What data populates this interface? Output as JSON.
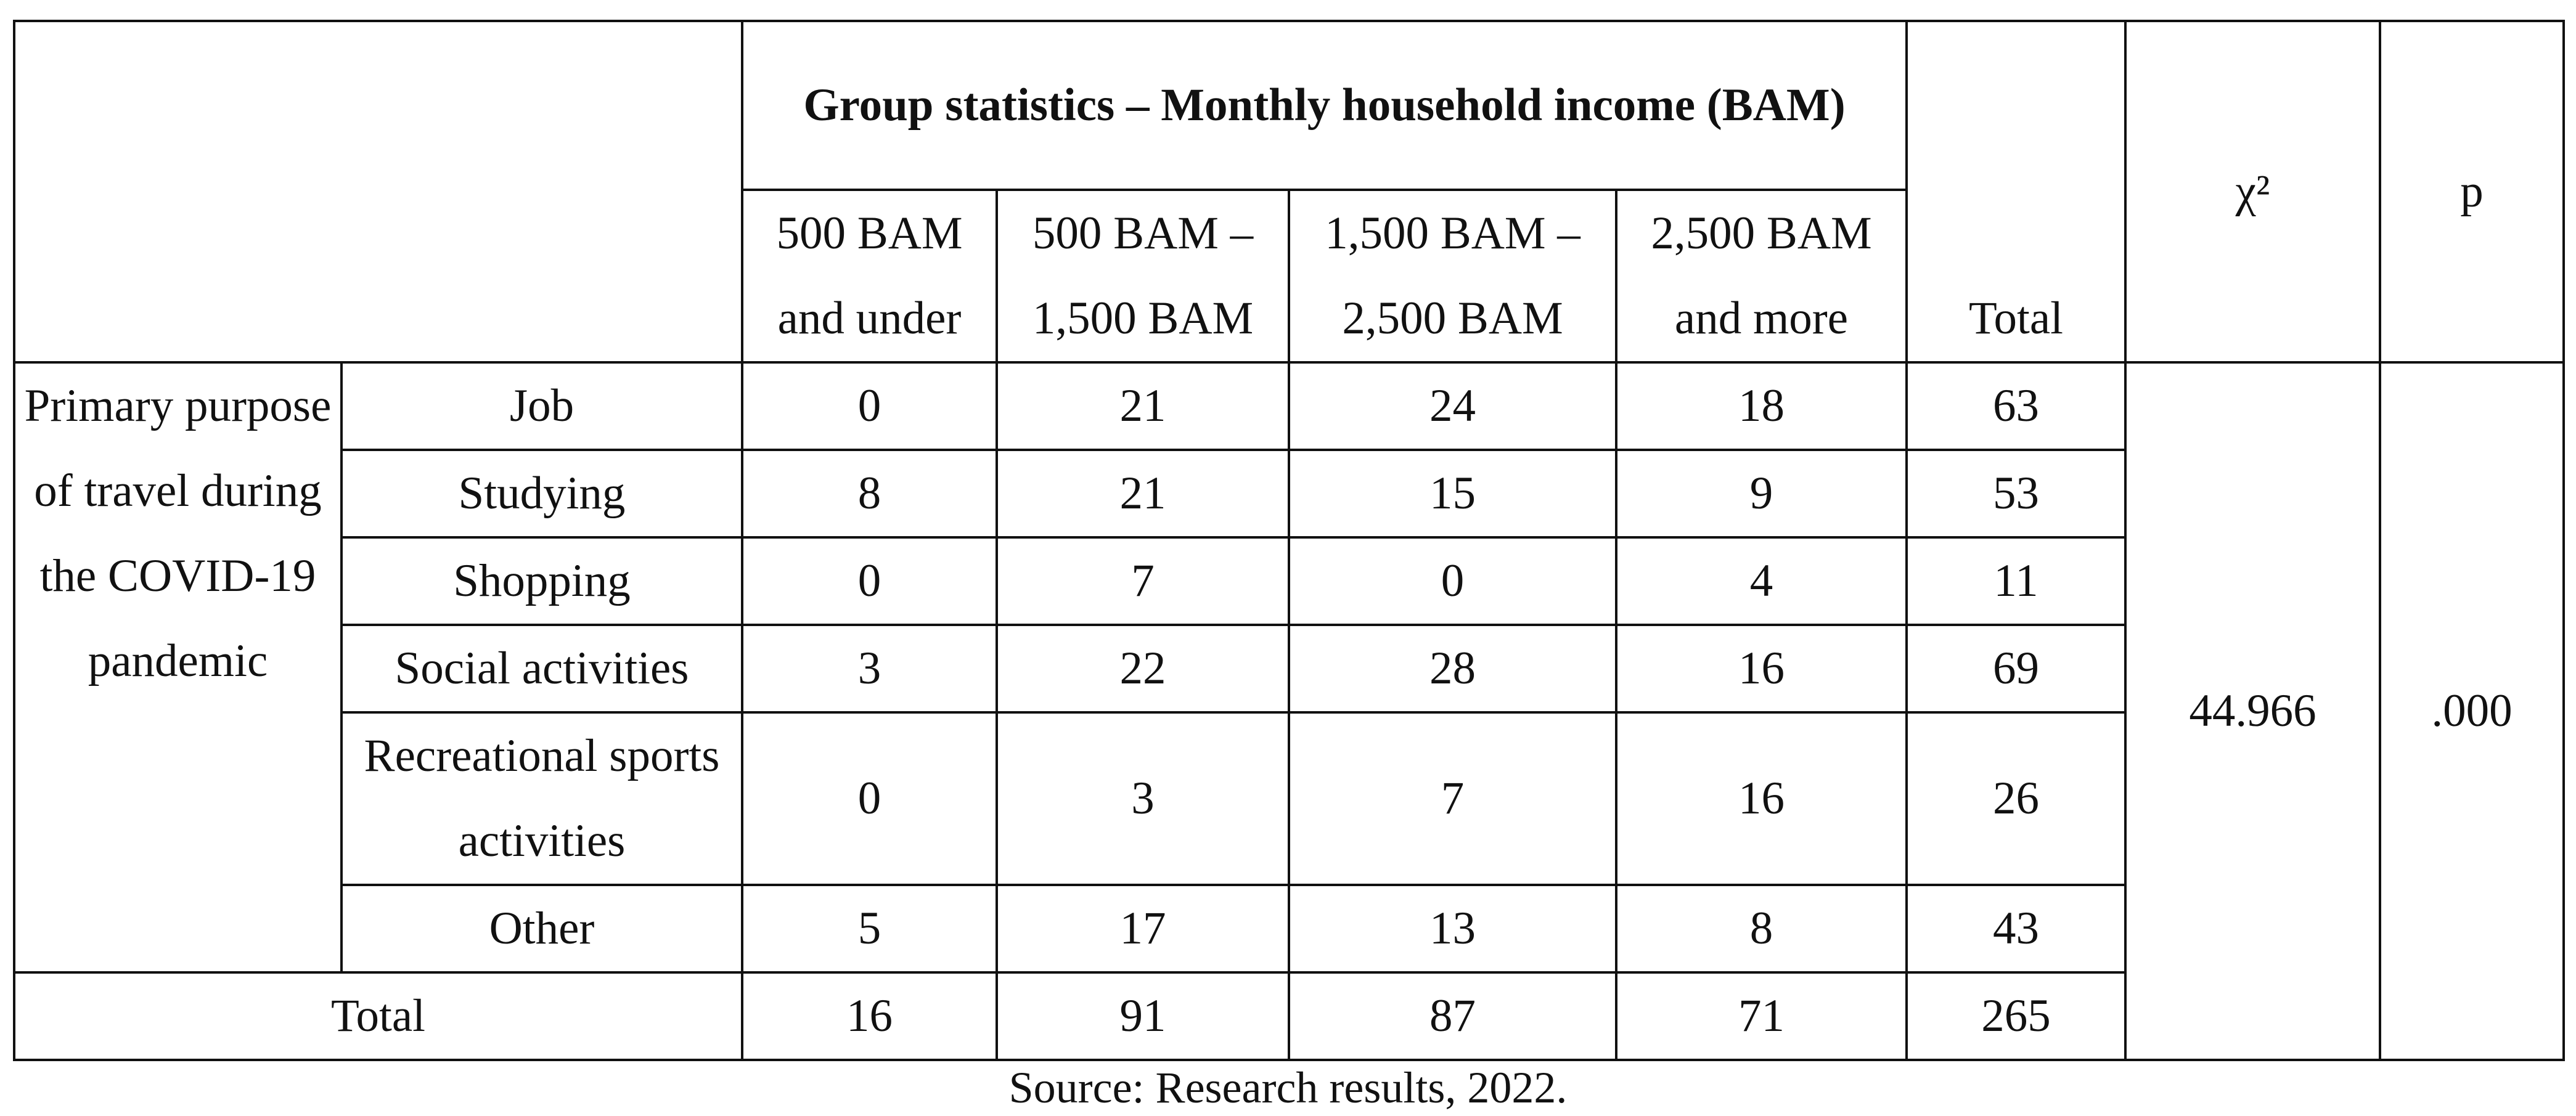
{
  "table": {
    "group_title": "Group statistics – Monthly household income (BAM)",
    "columns": [
      "500 BAM and under",
      "500 BAM – 1,500 BAM",
      "1,500 BAM – 2,500 BAM",
      "2,500 BAM and more",
      "Total"
    ],
    "chi2_header": "χ²",
    "p_header": "p",
    "row_group_label": "Primary purpose of travel during the COVID-19 pandemic",
    "rows": [
      {
        "label": "Job",
        "values": [
          0,
          21,
          24,
          18,
          63
        ]
      },
      {
        "label": "Studying",
        "values": [
          8,
          21,
          15,
          9,
          53
        ]
      },
      {
        "label": "Shopping",
        "values": [
          0,
          7,
          0,
          4,
          11
        ]
      },
      {
        "label": "Social activities",
        "values": [
          3,
          22,
          28,
          16,
          69
        ]
      },
      {
        "label": "Recreational sports activities",
        "values": [
          0,
          3,
          7,
          16,
          26
        ]
      },
      {
        "label": "Other",
        "values": [
          5,
          17,
          13,
          8,
          43
        ]
      }
    ],
    "total_row": {
      "label": "Total",
      "values": [
        16,
        91,
        87,
        71,
        265
      ]
    },
    "chi2": "44.966",
    "p": ".000"
  },
  "source": "Source: Research results, 2022."
}
